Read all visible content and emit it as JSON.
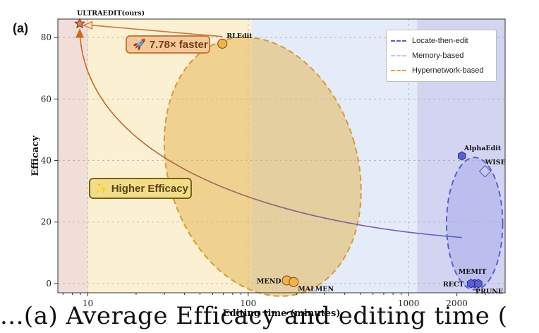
{
  "panel_label": "(a)",
  "caption_text": "...(a) Average Efficacy and editing time (",
  "callouts": {
    "faster": {
      "text": "7.78× faster",
      "icon": "rocket-icon"
    },
    "efficacy": {
      "text": "Higher Efficacy",
      "icon": "sparkle-icon"
    }
  },
  "chart_data": {
    "type": "scatter",
    "title": "",
    "xlabel": "Editing time (minutes)",
    "ylabel": "Efficacy",
    "xscale": "log",
    "xlim": [
      6.5,
      4000
    ],
    "ylim": [
      -3,
      86
    ],
    "xticks": [
      10,
      100,
      1000,
      2000
    ],
    "xtick_labels": [
      "10",
      "100",
      "1000",
      "2000"
    ],
    "yticks": [
      0,
      20,
      40,
      60,
      80
    ],
    "grid": true,
    "legend_position": "top-right",
    "legend": [
      {
        "label": "Locate-then-edit",
        "color": "#5a5fd6"
      },
      {
        "label": "Memory-based",
        "color": "#c7c3f2"
      },
      {
        "label": "Hypernetwork-based",
        "color": "#e3a436"
      }
    ],
    "regions": [
      {
        "x_from": 6.5,
        "x_to": 10,
        "color": "#f2ded8"
      },
      {
        "x_from": 10,
        "x_to": 105,
        "color": "#fbf0d2"
      },
      {
        "x_from": 105,
        "x_to": 1130,
        "color": "#e3ecf8"
      },
      {
        "x_from": 1130,
        "x_to": 4000,
        "color": "#d3d4f2"
      }
    ],
    "points": [
      {
        "name": "ULTRAEDIT(ours)",
        "x": 8.9,
        "y": 84.5,
        "marker": "star",
        "color": "#e1855a"
      },
      {
        "name": "RLEdit",
        "x": 69,
        "y": 78,
        "marker": "circle",
        "color": "#f2b24f"
      },
      {
        "name": "MEND",
        "x": 174,
        "y": 1,
        "marker": "circle",
        "color": "#f2b24f"
      },
      {
        "name": "MALMEN",
        "x": 192,
        "y": 0.5,
        "marker": "circle",
        "color": "#f2b24f"
      },
      {
        "name": "AlphaEdit",
        "x": 2150,
        "y": 41.5,
        "marker": "hexagon",
        "color": "#5b5fd1"
      },
      {
        "name": "WISE",
        "x": 3000,
        "y": 36.5,
        "marker": "diamond",
        "color": "#c8c9f3"
      },
      {
        "name": "MEMIT",
        "x": 2580,
        "y": 0,
        "marker": "hexagon",
        "color": "#5b5fd1"
      },
      {
        "name": "RECT",
        "x": 2450,
        "y": 0,
        "marker": "hexagon",
        "color": "#5b5fd1"
      },
      {
        "name": "PRUNE",
        "x": 2720,
        "y": 0,
        "marker": "hexagon",
        "color": "#5b5fd1"
      }
    ],
    "ellipses": [
      {
        "group": "Hypernetwork-based",
        "cx": 123,
        "cy": 38,
        "rx_dec": 0.59,
        "ry": 43,
        "angle": 17,
        "fill": "#e6b85a",
        "stroke": "#d79a36"
      },
      {
        "group": "Locate-then-edit",
        "cx": 2580,
        "cy": 19.5,
        "rx_dec": 0.175,
        "ry": 21.5,
        "angle": 0,
        "fill": "#a9abe9",
        "stroke": "#5b5fd1"
      }
    ],
    "arrows": [
      {
        "label": "faster",
        "from": [
          69,
          80.3
        ],
        "to": [
          9.4,
          84.2
        ],
        "color": "#c77a3a"
      },
      {
        "label": "efficacy",
        "from": [
          2150,
          15
        ],
        "to": [
          8.9,
          82
        ],
        "color_start": "#5b5fd1",
        "color_end": "#c96a1c"
      }
    ]
  }
}
